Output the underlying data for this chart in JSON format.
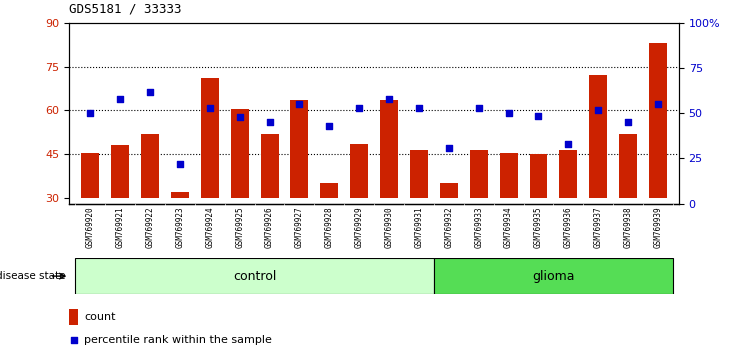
{
  "title": "GDS5181 / 33333",
  "samples": [
    "GSM769920",
    "GSM769921",
    "GSM769922",
    "GSM769923",
    "GSM769924",
    "GSM769925",
    "GSM769926",
    "GSM769927",
    "GSM769928",
    "GSM769929",
    "GSM769930",
    "GSM769931",
    "GSM769932",
    "GSM769933",
    "GSM769934",
    "GSM769935",
    "GSM769936",
    "GSM769937",
    "GSM769938",
    "GSM769939"
  ],
  "bar_values": [
    45.5,
    48.0,
    52.0,
    32.0,
    71.0,
    60.5,
    52.0,
    63.5,
    35.0,
    48.5,
    63.5,
    46.5,
    35.0,
    46.5,
    45.5,
    45.0,
    46.5,
    72.0,
    52.0,
    83.0
  ],
  "dot_percentile": [
    50.0,
    58.0,
    62.0,
    22.0,
    53.0,
    48.0,
    45.0,
    55.0,
    43.0,
    53.0,
    58.0,
    53.0,
    30.5,
    53.0,
    50.0,
    48.5,
    33.0,
    52.0,
    45.0,
    55.0
  ],
  "n_control": 12,
  "n_glioma": 8,
  "bar_color": "#cc2200",
  "dot_color": "#0000cc",
  "ylim_left": [
    28,
    90
  ],
  "ylim_right": [
    0,
    100
  ],
  "yticks_left": [
    30,
    45,
    60,
    75,
    90
  ],
  "yticks_right": [
    0,
    25,
    50,
    75,
    100
  ],
  "ytick_right_labels": [
    "0",
    "25",
    "50",
    "75",
    "100%"
  ],
  "ytick_left_labels": [
    "30",
    "45",
    "60",
    "75",
    "90"
  ],
  "hlines": [
    45,
    60,
    75
  ],
  "control_color": "#ccffcc",
  "glioma_color": "#55dd55",
  "label_bar": "count",
  "label_dot": "percentile rank within the sample",
  "disease_state_label": "disease state",
  "control_label": "control",
  "glioma_label": "glioma",
  "xtick_bg_color": "#cccccc",
  "bar_bottom": 30
}
